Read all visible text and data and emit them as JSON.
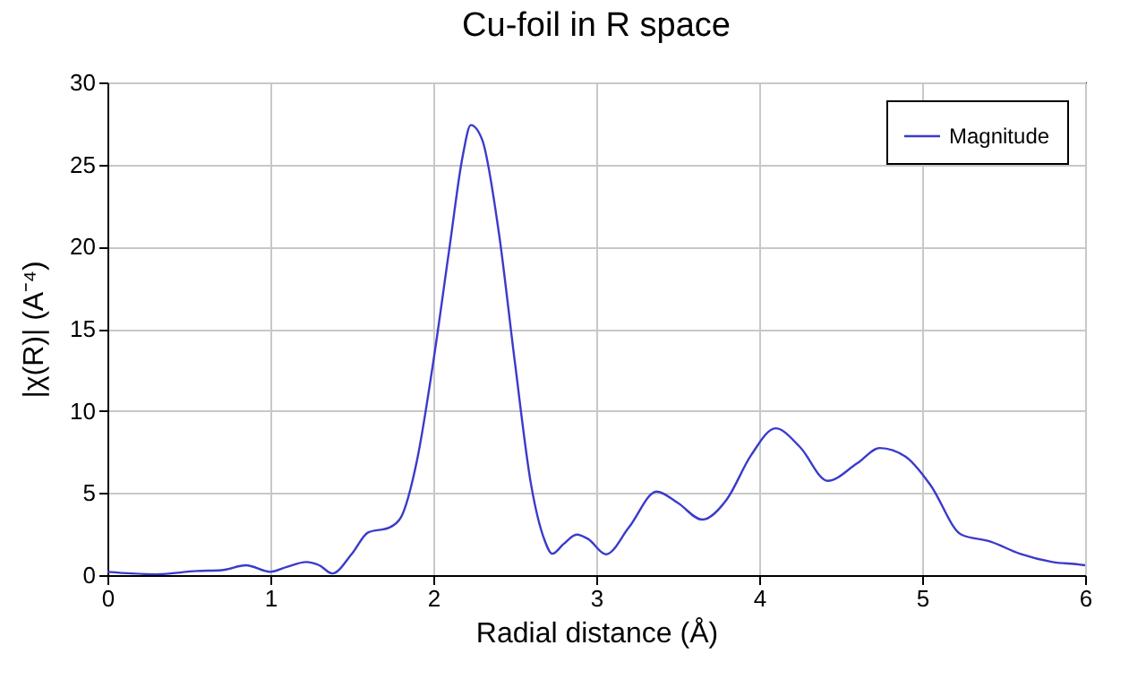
{
  "chart_data": {
    "type": "line",
    "title": "Cu-foil in R space",
    "xlabel": "Radial distance    (Å)",
    "ylabel": "|χ(R)|    (A⁻⁴)",
    "xlim": [
      0,
      6
    ],
    "xticks": [
      0,
      1,
      2,
      3,
      4,
      5,
      6
    ],
    "ylim": [
      0,
      30
    ],
    "yticks": [
      0,
      5,
      10,
      15,
      20,
      25,
      30
    ],
    "grid": true,
    "legend": "top right",
    "marker": "none",
    "line_style": "solid",
    "series": [
      {
        "name": "Magnitude",
        "color": "#3a3acc",
        "x": [
          0,
          0.15,
          0.3,
          0.55,
          0.7,
          0.85,
          1.0,
          1.1,
          1.22,
          1.3,
          1.38,
          1.5,
          1.6,
          1.73,
          1.8,
          1.9,
          2.0,
          2.1,
          2.18,
          2.23,
          2.3,
          2.4,
          2.5,
          2.6,
          2.68,
          2.73,
          2.8,
          2.88,
          2.95,
          3.06,
          3.2,
          3.37,
          3.5,
          3.65,
          3.8,
          3.95,
          4.1,
          4.25,
          4.42,
          4.6,
          4.74,
          4.9,
          5.05,
          5.24,
          5.42,
          5.6,
          5.8,
          5.96,
          6.0
        ],
        "values": [
          0.2,
          0.1,
          0.05,
          0.25,
          0.3,
          0.6,
          0.2,
          0.5,
          0.8,
          0.6,
          0.1,
          1.3,
          2.6,
          2.9,
          3.5,
          7,
          13,
          20,
          25.5,
          27.4,
          26.5,
          21,
          13,
          5.5,
          2.2,
          1.3,
          1.9,
          2.47,
          2.2,
          1.27,
          2.9,
          5.09,
          4.4,
          3.38,
          4.6,
          7.3,
          8.94,
          7.8,
          5.74,
          6.8,
          7.74,
          7.2,
          5.5,
          2.47,
          2.04,
          1.3,
          0.8,
          0.65,
          0.6
        ]
      }
    ]
  }
}
